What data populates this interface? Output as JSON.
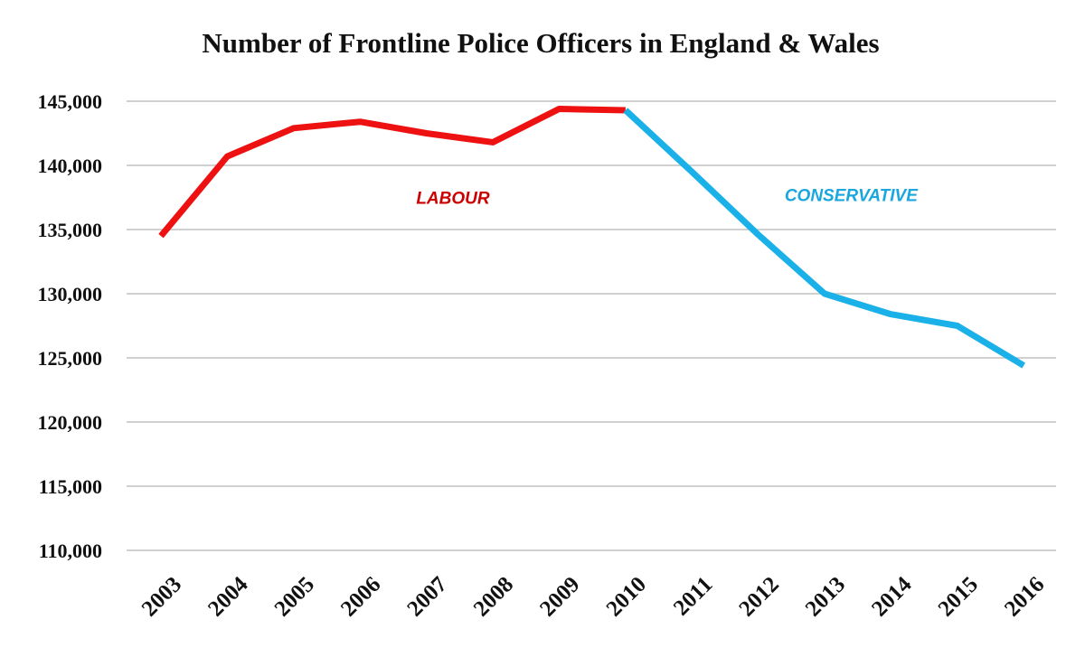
{
  "chart_data": {
    "type": "line",
    "title": "Number of Frontline Police Officers in England & Wales",
    "xlabel": "",
    "ylabel": "",
    "categories": [
      "2003",
      "2004",
      "2005",
      "2006",
      "2007",
      "2008",
      "2009",
      "2010",
      "2011",
      "2012",
      "2013",
      "2014",
      "2015",
      "2016"
    ],
    "ylim": [
      110000,
      145000
    ],
    "yticks": [
      110000,
      115000,
      120000,
      125000,
      130000,
      135000,
      140000,
      145000
    ],
    "ytick_labels": [
      "110,000",
      "115,000",
      "120,000",
      "125,000",
      "130,000",
      "135,000",
      "140,000",
      "145,000"
    ],
    "grid": true,
    "series": [
      {
        "name": "LABOUR",
        "color": "#ee1111",
        "x": [
          "2003",
          "2004",
          "2005",
          "2006",
          "2007",
          "2008",
          "2009",
          "2010"
        ],
        "values": [
          134500,
          140700,
          142900,
          143400,
          142500,
          141800,
          144400,
          144300
        ]
      },
      {
        "name": "CONSERVATIVE",
        "color": "#1ab0e8",
        "x": [
          "2010",
          "2011",
          "2012",
          "2013",
          "2014",
          "2015",
          "2016"
        ],
        "values": [
          144300,
          139500,
          134600,
          130000,
          128400,
          127500,
          124400
        ]
      }
    ],
    "annotations": [
      {
        "text": "LABOUR",
        "color": "#cc0000",
        "x": "2007.4",
        "y": 137500
      },
      {
        "text": "CONSERVATIVE",
        "color": "#1aa6df",
        "x": "2013.4",
        "y": 137700
      }
    ]
  }
}
